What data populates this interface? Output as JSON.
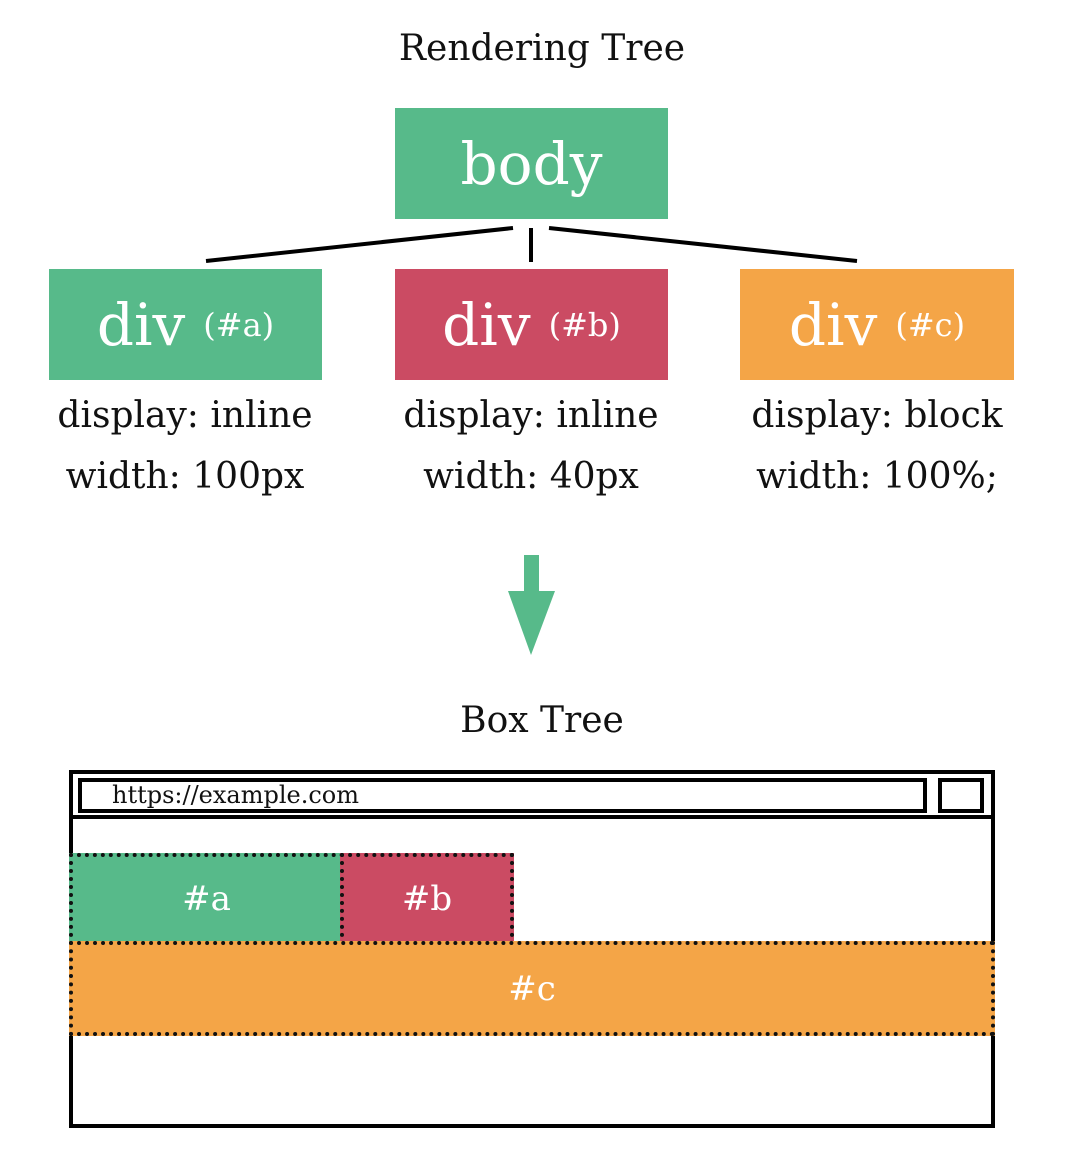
{
  "colors": {
    "green": "#57ba8a",
    "red": "#cb4b63",
    "orange": "#f4a547",
    "line": "#000000"
  },
  "rendering_tree": {
    "title": "Rendering Tree",
    "root": {
      "label": "body"
    },
    "children": [
      {
        "label": "div",
        "id": "(#a)",
        "display": "display: inline",
        "width": "width: 100px"
      },
      {
        "label": "div",
        "id": "(#b)",
        "display": "display: inline",
        "width": "width: 40px"
      },
      {
        "label": "div",
        "id": "(#c)",
        "display": "display: block",
        "width": "width: 100%;"
      }
    ]
  },
  "arrow": {
    "icon": "down-arrow-icon"
  },
  "box_tree": {
    "title": "Box Tree",
    "url": "https://example.com",
    "boxes": [
      {
        "label": "#a"
      },
      {
        "label": "#b"
      },
      {
        "label": "#c"
      }
    ]
  }
}
